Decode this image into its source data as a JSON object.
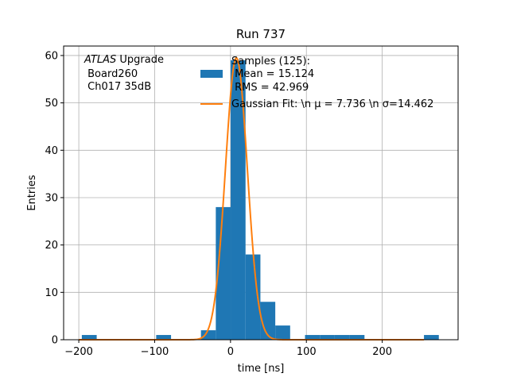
{
  "chart_data": {
    "type": "bar",
    "title": "Run 737",
    "xlabel": "time [ns]",
    "ylabel": "Entries",
    "xlim": [
      -220,
      300
    ],
    "ylim": [
      0,
      62
    ],
    "xticks": [
      -200,
      -100,
      0,
      100,
      200
    ],
    "xtick_labels": [
      "−200",
      "−100",
      "0",
      "100",
      "200"
    ],
    "yticks": [
      0,
      10,
      20,
      30,
      40,
      50,
      60
    ],
    "ytick_labels": [
      "0",
      "10",
      "20",
      "30",
      "40",
      "50",
      "60"
    ],
    "grid": true,
    "annotation": {
      "italic": "ATLAS",
      "line1_rest": " Upgrade",
      "line2": " Board260",
      "line3": " Ch017 35dB"
    },
    "legend": {
      "placement": "top-right",
      "histogram": {
        "line1": "Samples (125):",
        "line2": " Mean = 15.124",
        "line3": " RMS = 42.969",
        "color": "#1f77b4"
      },
      "fit": {
        "label": "Gaussian Fit: \\n μ = 7.736 \\n σ=14.462",
        "color": "#ff7f0e"
      }
    },
    "histogram": {
      "bin_width": 19.6,
      "bins": [
        {
          "x0": -196,
          "value": 1
        },
        {
          "x0": -98,
          "value": 1
        },
        {
          "x0": -39,
          "value": 2
        },
        {
          "x0": -19.4,
          "value": 28
        },
        {
          "x0": 0.2,
          "value": 59
        },
        {
          "x0": 19.8,
          "value": 18
        },
        {
          "x0": 39.4,
          "value": 8
        },
        {
          "x0": 59,
          "value": 3
        },
        {
          "x0": 98.2,
          "value": 1
        },
        {
          "x0": 117.8,
          "value": 1
        },
        {
          "x0": 137.4,
          "value": 1
        },
        {
          "x0": 157,
          "value": 1
        },
        {
          "x0": 255,
          "value": 1
        }
      ]
    },
    "gaussian_fit": {
      "mu": 7.736,
      "sigma": 14.462,
      "amplitude": 59.5,
      "x_range": [
        -200,
        255
      ]
    }
  }
}
